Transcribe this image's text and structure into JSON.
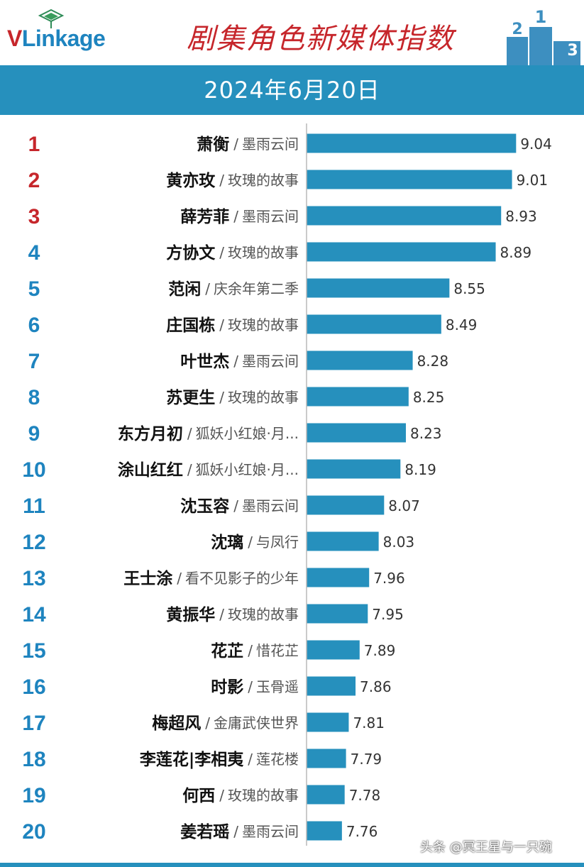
{
  "header": {
    "logo_text_v": "V",
    "logo_text_rest": "Linkage",
    "title": "剧集角色新媒体指数",
    "podium_labels": [
      "2",
      "1",
      "3"
    ]
  },
  "date_label": "2024年6月20日",
  "colors": {
    "bar": "#2690bd",
    "rank_top": "#c6262b",
    "rank_other": "#1e84bf",
    "title": "#c6262b"
  },
  "chart_data": {
    "type": "bar",
    "orientation": "horizontal",
    "title": "剧集角色新媒体指数",
    "subtitle": "2024年6月20日",
    "xlim": [
      7.5,
      9.2
    ],
    "rows": [
      {
        "rank": "1",
        "character": "萧衡",
        "separator": "/",
        "drama": "墨雨云间",
        "value": 9.04
      },
      {
        "rank": "2",
        "character": "黄亦玫",
        "separator": "/",
        "drama": "玫瑰的故事",
        "value": 9.01
      },
      {
        "rank": "3",
        "character": "薛芳菲",
        "separator": "/",
        "drama": "墨雨云间",
        "value": 8.93
      },
      {
        "rank": "4",
        "character": "方协文",
        "separator": "/",
        "drama": "玫瑰的故事",
        "value": 8.89
      },
      {
        "rank": "5",
        "character": "范闲",
        "separator": "/",
        "drama": "庆余年第二季",
        "value": 8.55
      },
      {
        "rank": "6",
        "character": "庄国栋",
        "separator": "/",
        "drama": "玫瑰的故事",
        "value": 8.49
      },
      {
        "rank": "7",
        "character": "叶世杰",
        "separator": "/",
        "drama": "墨雨云间",
        "value": 8.28
      },
      {
        "rank": "8",
        "character": "苏更生",
        "separator": "/",
        "drama": "玫瑰的故事",
        "value": 8.25
      },
      {
        "rank": "9",
        "character": "东方月初",
        "separator": "/",
        "drama": "狐妖小红娘·月...",
        "value": 8.23
      },
      {
        "rank": "10",
        "character": "涂山红红",
        "separator": "/",
        "drama": "狐妖小红娘·月...",
        "value": 8.19
      },
      {
        "rank": "11",
        "character": "沈玉容",
        "separator": "/",
        "drama": "墨雨云间",
        "value": 8.07
      },
      {
        "rank": "12",
        "character": "沈璃",
        "separator": "/",
        "drama": "与凤行",
        "value": 8.03
      },
      {
        "rank": "13",
        "character": "王士涂",
        "separator": "/",
        "drama": "看不见影子的少年",
        "value": 7.96
      },
      {
        "rank": "14",
        "character": "黄振华",
        "separator": "/",
        "drama": "玫瑰的故事",
        "value": 7.95
      },
      {
        "rank": "15",
        "character": "花芷",
        "separator": "/",
        "drama": "惜花芷",
        "value": 7.89
      },
      {
        "rank": "16",
        "character": "时影",
        "separator": "/",
        "drama": "玉骨遥",
        "value": 7.86
      },
      {
        "rank": "17",
        "character": "梅超风",
        "separator": "/",
        "drama": "金庸武侠世界",
        "value": 7.81
      },
      {
        "rank": "18",
        "character": "李莲花|李相夷",
        "separator": "/",
        "drama": "莲花楼",
        "value": 7.79
      },
      {
        "rank": "19",
        "character": "何西",
        "separator": "/",
        "drama": "玫瑰的故事",
        "value": 7.78
      },
      {
        "rank": "20",
        "character": "姜若瑶",
        "separator": "/",
        "drama": "墨雨云间",
        "value": 7.76
      }
    ]
  },
  "watermark": "头条 @冥王星与一只碗"
}
